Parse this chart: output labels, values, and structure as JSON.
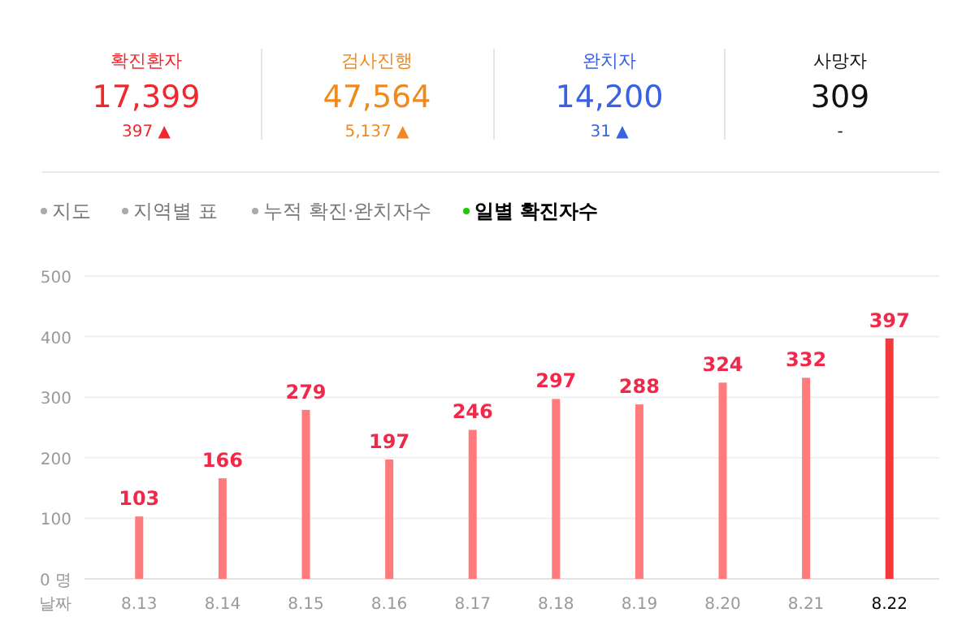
{
  "chart_data": [
    {
      "type": "other",
      "annotations": [
        "확진환자",
        "17,399",
        "397 ▲",
        "검사진행",
        "47,564",
        "5,137 ▲",
        "완치자",
        "14,200",
        "31 ▲",
        "사망자",
        "309",
        "-",
        "지도",
        "지역별 표",
        "누적 확진·완치자수",
        "일별 확진자수"
      ]
    },
    {
      "type": "bar",
      "xlabel": "날짜",
      "categories": [
        "8.13",
        "8.14",
        "8.15",
        "8.16",
        "8.17",
        "8.18",
        "8.19",
        "8.20",
        "8.21",
        "8.22"
      ],
      "values": [
        103,
        166,
        279,
        197,
        246,
        297,
        288,
        324,
        332,
        397
      ],
      "colors": [
        "#ff7b7b",
        "#ff7b7b",
        "#ff7b7b",
        "#ff7b7b",
        "#ff7b7b",
        "#ff7b7b",
        "#ff7b7b",
        "#ff7b7b",
        "#ff7b7b",
        "#f33a3a"
      ],
      "ylim": [
        0,
        500
      ],
      "yticks": [
        {
          "value": 0,
          "label": "0 명"
        },
        100,
        200,
        300,
        400,
        500
      ],
      "grid": "y",
      "data_labels": true
    }
  ]
}
